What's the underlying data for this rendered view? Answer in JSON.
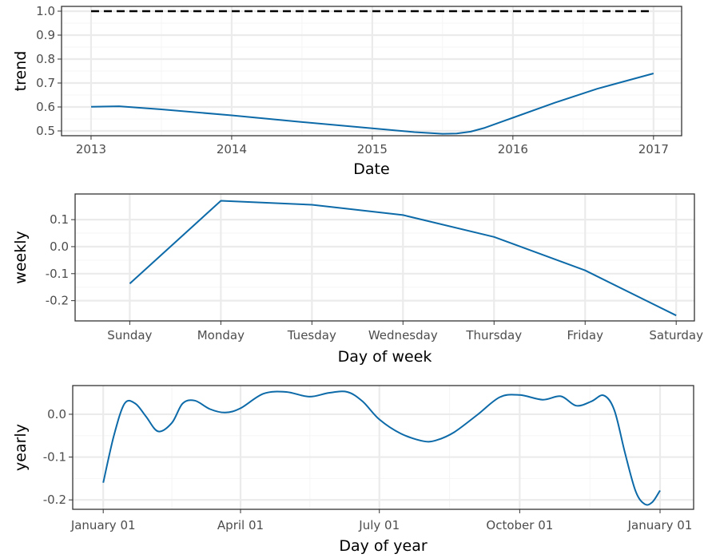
{
  "colors": {
    "line": "#0d6aa8",
    "cap": "#000000",
    "grid_major": "#ebebeb",
    "grid_minor": "#f5f5f5",
    "frame": "#333333"
  },
  "chart_data": [
    {
      "type": "line",
      "xlabel": "Date",
      "ylabel": "trend",
      "x_ticks": [
        "2013",
        "2014",
        "2015",
        "2016",
        "2017"
      ],
      "y_ticks": [
        "0.5",
        "0.6",
        "0.7",
        "0.8",
        "0.9",
        "1.0"
      ],
      "xlim": [
        2012.79,
        2017.2
      ],
      "ylim": [
        0.48,
        1.02
      ],
      "grid": true,
      "series": [
        {
          "x": [
            2013.0,
            2013.2,
            2013.5,
            2014.0,
            2014.5,
            2015.0,
            2015.3,
            2015.5,
            2015.6,
            2015.7,
            2015.8,
            2016.0,
            2016.3,
            2016.6,
            2017.0
          ],
          "y": [
            0.601,
            0.603,
            0.59,
            0.565,
            0.537,
            0.511,
            0.495,
            0.488,
            0.489,
            0.497,
            0.513,
            0.555,
            0.618,
            0.676,
            0.74
          ]
        }
      ],
      "cap": {
        "value": 1.0,
        "style": "dashed"
      }
    },
    {
      "type": "line",
      "xlabel": "Day of week",
      "ylabel": "weekly",
      "categories": [
        "Sunday",
        "Monday",
        "Tuesday",
        "Wednesday",
        "Thursday",
        "Friday",
        "Saturday"
      ],
      "y_ticks": [
        "-0.2",
        "-0.1",
        "0.0",
        "0.1"
      ],
      "ylim": [
        -0.275,
        0.195
      ],
      "grid": true,
      "series": [
        {
          "values": [
            -0.137,
            0.17,
            0.155,
            0.117,
            0.036,
            -0.088,
            -0.255
          ]
        }
      ]
    },
    {
      "type": "line",
      "xlabel": "Day of year",
      "ylabel": "yearly",
      "x_ticks": [
        "January 01",
        "April 01",
        "July 01",
        "October 01",
        "January 01"
      ],
      "y_ticks": [
        "-0.2",
        "-0.1",
        "0.0"
      ],
      "xlim": [
        -20,
        387
      ],
      "ylim": [
        -0.222,
        0.067
      ],
      "grid": true,
      "series": [
        {
          "x": [
            0,
            7,
            14,
            21,
            28,
            36,
            45,
            52,
            60,
            70,
            80,
            90,
            105,
            120,
            135,
            148,
            160,
            170,
            181,
            195,
            210,
            219,
            230,
            245,
            260,
            273,
            288,
            300,
            310,
            320,
            328,
            335,
            342,
            349,
            355,
            360,
            365
          ],
          "y": [
            -0.16,
            -0.05,
            0.025,
            0.025,
            -0.005,
            -0.04,
            -0.02,
            0.025,
            0.032,
            0.012,
            0.004,
            0.014,
            0.048,
            0.052,
            0.041,
            0.05,
            0.052,
            0.03,
            -0.012,
            -0.045,
            -0.063,
            -0.06,
            -0.042,
            -0.002,
            0.04,
            0.045,
            0.034,
            0.042,
            0.02,
            0.03,
            0.044,
            0.01,
            -0.09,
            -0.18,
            -0.21,
            -0.205,
            -0.178
          ]
        }
      ]
    }
  ]
}
